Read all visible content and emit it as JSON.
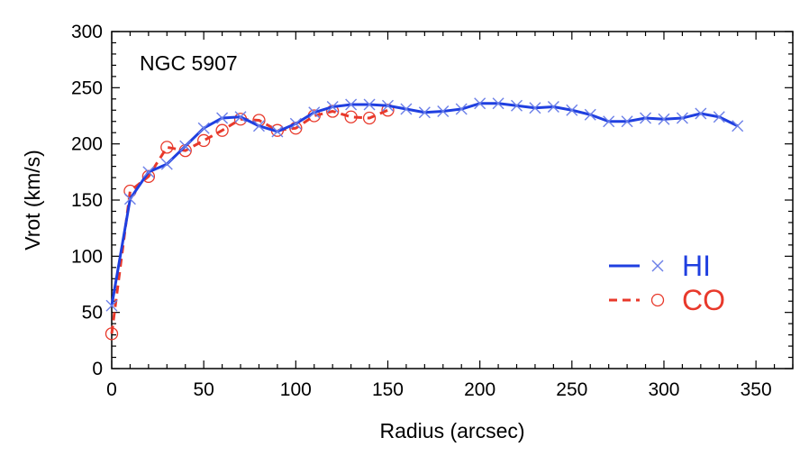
{
  "chart_data": {
    "type": "line",
    "annotation": "NGC 5907",
    "xlabel": "Radius (arcsec)",
    "ylabel": "Vrot (km/s)",
    "xlim": [
      0,
      370
    ],
    "ylim": [
      0,
      300
    ],
    "xticks": [
      0,
      50,
      100,
      150,
      200,
      250,
      300,
      350
    ],
    "yticks": [
      0,
      50,
      100,
      150,
      200,
      250,
      300
    ],
    "legend_position": "right",
    "series": [
      {
        "name": "HI",
        "color": "#1f3fe0",
        "marker_color": "#6b7fe8",
        "line_style": "solid",
        "marker": "x",
        "x": [
          0,
          10,
          20,
          30,
          40,
          50,
          60,
          70,
          80,
          90,
          100,
          110,
          120,
          130,
          140,
          150,
          160,
          170,
          180,
          190,
          200,
          210,
          220,
          230,
          240,
          250,
          260,
          270,
          280,
          290,
          300,
          310,
          320,
          330,
          340
        ],
        "y": [
          56,
          151,
          175,
          182,
          198,
          214,
          223,
          224,
          216,
          211,
          218,
          228,
          233,
          235,
          235,
          234,
          231,
          228,
          229,
          231,
          236,
          236,
          234,
          232,
          233,
          230,
          226,
          220,
          220,
          223,
          222,
          223,
          227,
          224,
          216
        ]
      },
      {
        "name": "CO",
        "color": "#e8392b",
        "marker_color": "#e8392b",
        "line_style": "dashed",
        "marker": "circle",
        "x": [
          0,
          10,
          20,
          30,
          40,
          50,
          60,
          70,
          80,
          90,
          100,
          110,
          120,
          130,
          140,
          150
        ],
        "y": [
          31,
          158,
          171,
          197,
          194,
          203,
          212,
          222,
          221,
          212,
          214,
          225,
          229,
          224,
          223,
          230
        ]
      }
    ]
  }
}
